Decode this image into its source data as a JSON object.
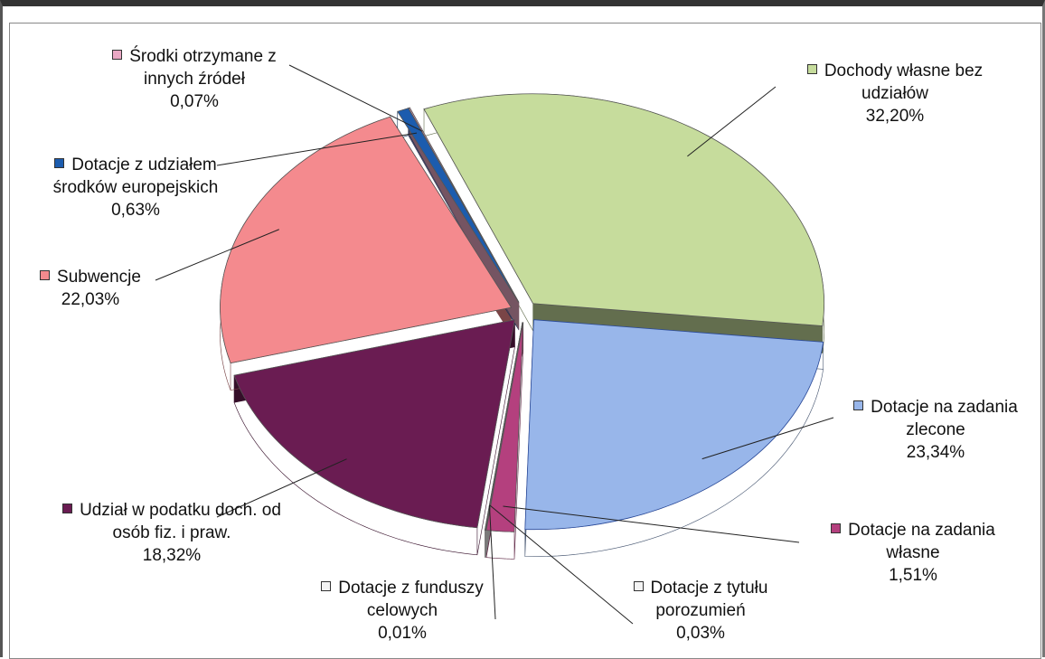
{
  "chart_data": {
    "type": "pie",
    "categories": [
      "Dochody własne bez udziałów",
      "Dotacje na zadania zlecone",
      "Dotacje na zadania własne",
      "Dotacje z tytułu porozumień",
      "Dotacje z funduszy celowych",
      "Udział w podatku doch. od osób fiz. i praw.",
      "Subwencje",
      "Dotacje z udziałem środków europejskich",
      "Środki otrzymane z innych źródeł"
    ],
    "values": [
      32.2,
      23.34,
      1.51,
      0.03,
      0.01,
      18.32,
      22.03,
      0.63,
      0.07
    ],
    "value_labels": [
      "32,20%",
      "23,34%",
      "1,51%",
      "0,03%",
      "0,01%",
      "18,32%",
      "22,03%",
      "0,63%",
      "0,07%"
    ],
    "colors": [
      "#c6dc9c",
      "#98b6ea",
      "#b4407e",
      "#f4f4f4",
      "#f4f4f4",
      "#6a1c52",
      "#f48a8e",
      "#1c5cae",
      "#eaa8c4"
    ]
  }
}
